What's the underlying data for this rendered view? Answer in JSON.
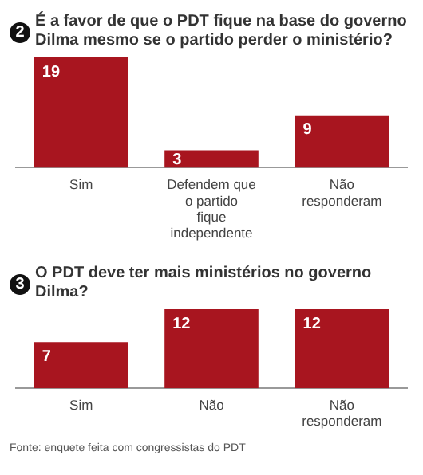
{
  "chart_data": [
    {
      "type": "bar",
      "title": "2 É a favor de que o PDT fique na base do governo Dilma mesmo se o partido perder o ministério?",
      "categories": [
        "Sim",
        "Defendem que o partido fique independente",
        "Não responderam"
      ],
      "values": [
        19,
        3,
        9
      ],
      "color": "#a8151f",
      "data_labels": true,
      "grid": false,
      "legend": false
    },
    {
      "type": "bar",
      "title": "3 O PDT deve ter mais ministérios no governo Dilma?",
      "categories": [
        "Sim",
        "Não",
        "Não responderam"
      ],
      "values": [
        7,
        12,
        12
      ],
      "color": "#a8151f",
      "data_labels": true,
      "grid": false,
      "legend": false,
      "annotations": [
        "Fonte: enquete feita com congressistas do PDT"
      ]
    }
  ]
}
